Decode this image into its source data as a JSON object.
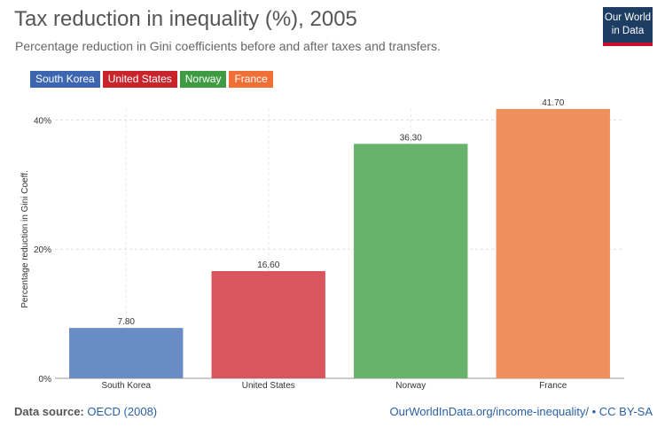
{
  "header": {
    "title": "Tax reduction in inequality (%), 2005",
    "subtitle": "Percentage reduction in Gini coefficients before and after taxes and transfers.",
    "logo_line1": "Our World",
    "logo_line2": "in Data"
  },
  "legend": [
    {
      "label": "South Korea",
      "color": "#3c67b0"
    },
    {
      "label": "United States",
      "color": "#c9242c"
    },
    {
      "label": "Norway",
      "color": "#3e9b41"
    },
    {
      "label": "France",
      "color": "#ef6f35"
    }
  ],
  "chart_data": {
    "type": "bar",
    "categories": [
      "South Korea",
      "United States",
      "Norway",
      "France"
    ],
    "values": [
      7.8,
      16.6,
      36.3,
      41.7
    ],
    "value_labels": [
      "7.80",
      "16.60",
      "36.30",
      "41.70"
    ],
    "colors": [
      "#6a8cc4",
      "#d9565e",
      "#67b36c",
      "#f08f5e"
    ],
    "ylabel": "Percentage reduction in Gini Coeff.",
    "ylim": [
      0,
      41.7
    ],
    "yticks": [
      0,
      20,
      40
    ],
    "ytick_labels": [
      "0%",
      "20%",
      "40%"
    ],
    "grid": true
  },
  "footer": {
    "source_label": "Data source:",
    "source_value": "OECD (2008)",
    "link": "OurWorldInData.org/income-inequality/",
    "license": " • CC BY-SA"
  }
}
